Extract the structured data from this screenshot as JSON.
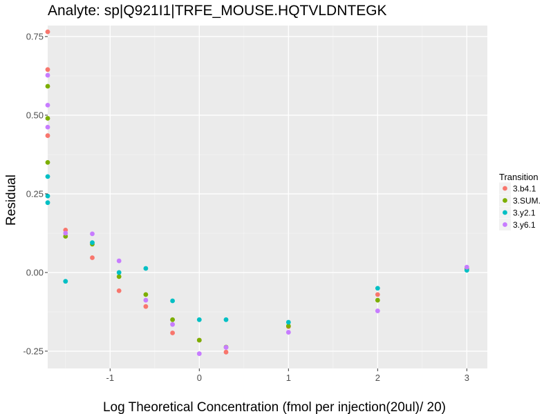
{
  "chart_data": {
    "type": "scatter",
    "title": "Analyte: sp|Q921I1|TRFE_MOUSE.HQTVLDNTEGK",
    "xlabel": "Log Theoretical Concentration (fmol per injection(20ul)/ 20)",
    "ylabel": "Residual",
    "xlim": [
      -1.7,
      3.23
    ],
    "ylim": [
      -0.305,
      0.785
    ],
    "x_ticks": [
      -1,
      0,
      1,
      2,
      3
    ],
    "x_tick_labels": [
      "-1",
      "0",
      "1",
      "2",
      "3"
    ],
    "y_ticks": [
      -0.25,
      0.0,
      0.25,
      0.5,
      0.75
    ],
    "y_tick_labels": [
      "-0.25",
      "0.00",
      "0.25",
      "0.50",
      "0.75"
    ],
    "grid": true,
    "legend": {
      "title": "Transition",
      "position": "right"
    },
    "series": [
      {
        "name": "3.b4.1",
        "color": "#F8766D",
        "points": [
          [
            -1.7,
            0.765
          ],
          [
            -1.7,
            0.645
          ],
          [
            -1.7,
            0.435
          ],
          [
            -1.5,
            0.135
          ],
          [
            -1.2,
            0.047
          ],
          [
            -0.9,
            -0.058
          ],
          [
            -0.6,
            -0.108
          ],
          [
            -0.3,
            -0.192
          ],
          [
            0,
            -0.215
          ],
          [
            0.3,
            -0.253
          ],
          [
            1,
            -0.172
          ],
          [
            2,
            -0.07
          ],
          [
            3,
            0.01
          ]
        ]
      },
      {
        "name": "3.SUM.",
        "color": "#7CAE00",
        "points": [
          [
            -1.7,
            0.592
          ],
          [
            -1.7,
            0.49
          ],
          [
            -1.7,
            0.35
          ],
          [
            -1.5,
            0.115
          ],
          [
            -1.2,
            0.09
          ],
          [
            -0.9,
            -0.013
          ],
          [
            -0.6,
            -0.07
          ],
          [
            -0.3,
            -0.15
          ],
          [
            0,
            -0.215
          ],
          [
            0.3,
            -0.237
          ],
          [
            1,
            -0.17
          ],
          [
            2,
            -0.088
          ],
          [
            3,
            0.012
          ]
        ]
      },
      {
        "name": "3.y2.1",
        "color": "#00BFC4",
        "points": [
          [
            -1.7,
            0.305
          ],
          [
            -1.7,
            0.243
          ],
          [
            -1.7,
            0.222
          ],
          [
            -1.5,
            -0.028
          ],
          [
            -1.2,
            0.095
          ],
          [
            -0.9,
            0.0
          ],
          [
            -0.6,
            0.013
          ],
          [
            -0.3,
            -0.09
          ],
          [
            0,
            -0.15
          ],
          [
            0.3,
            -0.15
          ],
          [
            1,
            -0.158
          ],
          [
            2,
            -0.05
          ],
          [
            3,
            0.007
          ]
        ]
      },
      {
        "name": "3.y6.1",
        "color": "#C77CFF",
        "points": [
          [
            -1.7,
            0.627
          ],
          [
            -1.7,
            0.532
          ],
          [
            -1.7,
            0.462
          ],
          [
            -1.5,
            0.125
          ],
          [
            -1.2,
            0.123
          ],
          [
            -0.9,
            0.037
          ],
          [
            -0.6,
            -0.088
          ],
          [
            -0.3,
            -0.165
          ],
          [
            0,
            -0.258
          ],
          [
            0.3,
            -0.238
          ],
          [
            1,
            -0.19
          ],
          [
            2,
            -0.122
          ],
          [
            3,
            0.017
          ]
        ]
      }
    ]
  }
}
